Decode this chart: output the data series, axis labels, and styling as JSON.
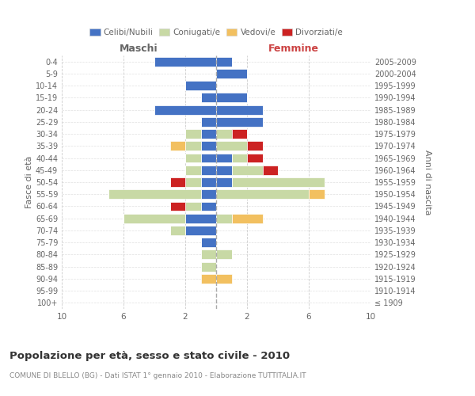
{
  "age_groups": [
    "100+",
    "95-99",
    "90-94",
    "85-89",
    "80-84",
    "75-79",
    "70-74",
    "65-69",
    "60-64",
    "55-59",
    "50-54",
    "45-49",
    "40-44",
    "35-39",
    "30-34",
    "25-29",
    "20-24",
    "15-19",
    "10-14",
    "5-9",
    "0-4"
  ],
  "birth_years": [
    "≤ 1909",
    "1910-1914",
    "1915-1919",
    "1920-1924",
    "1925-1929",
    "1930-1934",
    "1935-1939",
    "1940-1944",
    "1945-1949",
    "1950-1954",
    "1955-1959",
    "1960-1964",
    "1965-1969",
    "1970-1974",
    "1975-1979",
    "1980-1984",
    "1985-1989",
    "1990-1994",
    "1995-1999",
    "2000-2004",
    "2005-2009"
  ],
  "maschi_celibi": [
    0,
    0,
    0,
    0,
    0,
    1,
    2,
    2,
    1,
    1,
    1,
    1,
    1,
    1,
    1,
    1,
    4,
    1,
    2,
    0,
    4
  ],
  "maschi_coniugati": [
    0,
    0,
    0,
    1,
    1,
    0,
    1,
    4,
    1,
    6,
    1,
    1,
    1,
    1,
    1,
    0,
    0,
    0,
    0,
    0,
    0
  ],
  "maschi_vedovi": [
    0,
    0,
    1,
    0,
    0,
    0,
    0,
    0,
    0,
    0,
    0,
    0,
    0,
    1,
    0,
    0,
    0,
    0,
    0,
    0,
    0
  ],
  "maschi_divorziati": [
    0,
    0,
    0,
    0,
    0,
    0,
    0,
    0,
    1,
    0,
    1,
    0,
    0,
    0,
    0,
    0,
    0,
    0,
    0,
    0,
    0
  ],
  "femmine_nubili": [
    0,
    0,
    0,
    0,
    0,
    0,
    0,
    0,
    0,
    0,
    1,
    1,
    1,
    0,
    0,
    3,
    3,
    2,
    0,
    2,
    1
  ],
  "femmine_coniugate": [
    0,
    0,
    0,
    0,
    1,
    0,
    0,
    1,
    0,
    6,
    6,
    2,
    1,
    2,
    1,
    0,
    0,
    0,
    0,
    0,
    0
  ],
  "femmine_vedove": [
    0,
    0,
    1,
    0,
    0,
    0,
    0,
    2,
    0,
    1,
    0,
    0,
    0,
    0,
    0,
    0,
    0,
    0,
    0,
    0,
    0
  ],
  "femmine_divorziate": [
    0,
    0,
    0,
    0,
    0,
    0,
    0,
    0,
    0,
    0,
    0,
    1,
    1,
    1,
    1,
    0,
    0,
    0,
    0,
    0,
    0
  ],
  "color_celibi": "#4472c4",
  "color_coniugati": "#c8d9a5",
  "color_vedovi": "#f2c060",
  "color_divorziati": "#cc2222",
  "xlim": 10,
  "title": "Popolazione per età, sesso e stato civile - 2010",
  "subtitle": "COMUNE DI BLELLO (BG) - Dati ISTAT 1° gennaio 2010 - Elaborazione TUTTITALIA.IT",
  "legend_labels": [
    "Celibi/Nubili",
    "Coniugati/e",
    "Vedovi/e",
    "Divorziati/e"
  ],
  "label_maschi": "Maschi",
  "label_femmine": "Femmine",
  "label_fasce": "Fasce di età",
  "label_anni": "Anni di nascita",
  "bg_color": "#ffffff",
  "grid_color": "#cccccc",
  "text_color": "#666666",
  "fem_color": "#cc4444"
}
